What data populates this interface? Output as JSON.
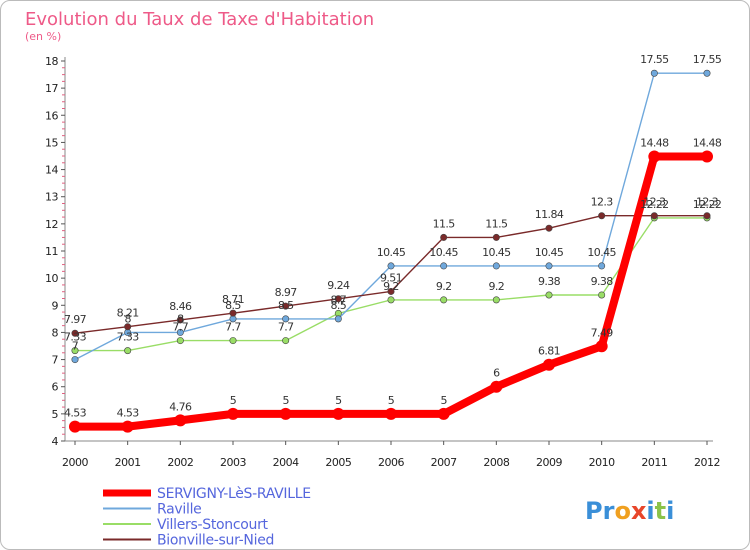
{
  "chart_data": {
    "type": "line",
    "title": "Evolution du Taux de Taxe d'Habitation",
    "subtitle": "(en %)",
    "x": [
      "2000",
      "2001",
      "2002",
      "2003",
      "2004",
      "2005",
      "2006",
      "2007",
      "2008",
      "2009",
      "2010",
      "2011",
      "2012"
    ],
    "ylim": [
      4,
      18
    ],
    "yticks": [
      "4",
      "5",
      "6",
      "7",
      "8",
      "9",
      "10",
      "11",
      "12",
      "13",
      "14",
      "15",
      "16",
      "17",
      "18"
    ],
    "grid": false,
    "legend_position": "bottom-left",
    "series": [
      {
        "name": "SERVIGNY-LèS-RAVILLE",
        "color": "#ff0000",
        "values": [
          4.53,
          4.53,
          4.76,
          5,
          5,
          5,
          5,
          5,
          6,
          6.81,
          7.49,
          14.48,
          14.48
        ],
        "labels": [
          "4.53",
          "4.53",
          "4.76",
          "5",
          "5",
          "5",
          "5",
          "5",
          "6",
          "6.81",
          "7.49",
          "14.48",
          "14.48"
        ]
      },
      {
        "name": "Raville",
        "color": "#6fa8dc",
        "values": [
          7,
          8,
          8,
          8.5,
          8.5,
          8.5,
          10.45,
          10.45,
          10.45,
          10.45,
          10.45,
          17.55,
          17.55
        ],
        "labels": [
          "7",
          "8",
          "8",
          "8.5",
          "8.5",
          "8.5",
          "10.45",
          "10.45",
          "10.45",
          "10.45",
          "10.45",
          "17.55",
          "17.55"
        ]
      },
      {
        "name": "Villers-Stoncourt",
        "color": "#99dd66",
        "values": [
          7.33,
          7.33,
          7.7,
          7.7,
          7.7,
          8.7,
          9.2,
          9.2,
          9.2,
          9.38,
          9.38,
          12.22,
          12.22
        ],
        "labels": [
          "7.33",
          "7.33",
          "7.7",
          "7.7",
          "7.7",
          "8.7",
          "9.2",
          "9.2",
          "9.2",
          "9.38",
          "9.38",
          "12.22",
          "12.22"
        ]
      },
      {
        "name": "Bionville-sur-Nied",
        "color": "#7a2a2a",
        "values": [
          7.97,
          8.21,
          8.46,
          8.71,
          8.97,
          9.24,
          9.51,
          11.5,
          11.5,
          11.84,
          12.3,
          12.3,
          12.3
        ],
        "labels": [
          "7.97",
          "8.21",
          "8.46",
          "8.71",
          "8.97",
          "9.24",
          "9.51",
          "11.5",
          "11.5",
          "11.84",
          "12.3",
          "12.3",
          "12.3"
        ]
      }
    ]
  },
  "brand": {
    "letters": [
      "P",
      "r",
      "o",
      "x",
      "i",
      "t",
      "i"
    ],
    "colors": [
      "#3a8fd8",
      "#3a8fd8",
      "#f0a020",
      "#e8462a",
      "#3a8fd8",
      "#8bc34a",
      "#3a8fd8"
    ]
  }
}
